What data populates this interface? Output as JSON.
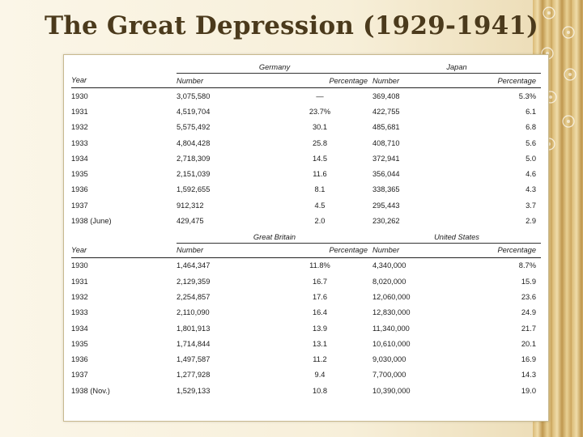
{
  "title": "The Great Depression (1929-1941)",
  "table": {
    "column_headers": [
      "Year",
      "Number",
      "Percentage",
      "Number",
      "Percentage"
    ],
    "sections": [
      {
        "countries": [
          "Germany",
          "Japan"
        ],
        "rows": [
          [
            "1930",
            "3,075,580",
            "—",
            "369,408",
            "5.3%"
          ],
          [
            "1931",
            "4,519,704",
            "23.7%",
            "422,755",
            "6.1"
          ],
          [
            "1932",
            "5,575,492",
            "30.1",
            "485,681",
            "6.8"
          ],
          [
            "1933",
            "4,804,428",
            "25.8",
            "408,710",
            "5.6"
          ],
          [
            "1934",
            "2,718,309",
            "14.5",
            "372,941",
            "5.0"
          ],
          [
            "1935",
            "2,151,039",
            "11.6",
            "356,044",
            "4.6"
          ],
          [
            "1936",
            "1,592,655",
            "8.1",
            "338,365",
            "4.3"
          ],
          [
            "1937",
            "912,312",
            "4.5",
            "295,443",
            "3.7"
          ],
          [
            "1938 (June)",
            "429,475",
            "2.0",
            "230,262",
            "2.9"
          ]
        ]
      },
      {
        "countries": [
          "Great Britain",
          "United States"
        ],
        "rows": [
          [
            "1930",
            "1,464,347",
            "11.8%",
            "4,340,000",
            "8.7%"
          ],
          [
            "1931",
            "2,129,359",
            "16.7",
            "8,020,000",
            "15.9"
          ],
          [
            "1932",
            "2,254,857",
            "17.6",
            "12,060,000",
            "23.6"
          ],
          [
            "1933",
            "2,110,090",
            "16.4",
            "12,830,000",
            "24.9"
          ],
          [
            "1934",
            "1,801,913",
            "13.9",
            "11,340,000",
            "21.7"
          ],
          [
            "1935",
            "1,714,844",
            "13.1",
            "10,610,000",
            "20.1"
          ],
          [
            "1936",
            "1,497,587",
            "11.2",
            "9,030,000",
            "16.9"
          ],
          [
            "1937",
            "1,277,928",
            "9.4",
            "7,700,000",
            "14.3"
          ],
          [
            "1938 (Nov.)",
            "1,529,133",
            "10.8",
            "10,390,000",
            "19.0"
          ]
        ]
      }
    ]
  }
}
